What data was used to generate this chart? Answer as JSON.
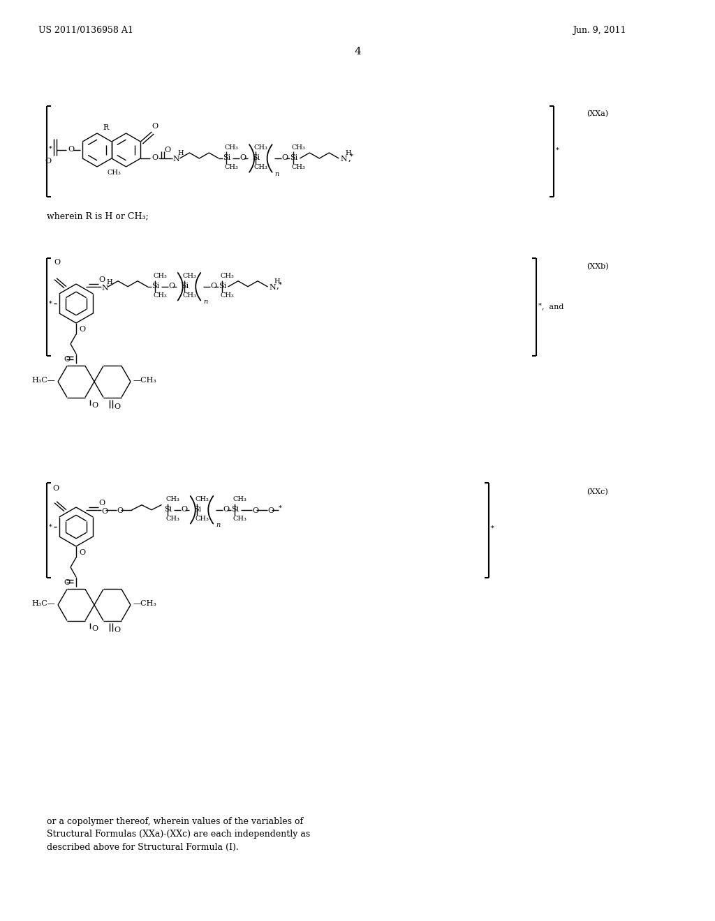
{
  "bg_color": "#ffffff",
  "header_left": "US 2011/0136958 A1",
  "header_right": "Jun. 9, 2011",
  "page_number": "4",
  "label_XXa": "(XXa)",
  "label_XXb": "(XXb)",
  "label_XXc": "(XXc)",
  "wherein_text": "wherein R is H or CH₃;",
  "footer_line1": "or a copolymer thereof, wherein values of the variables of",
  "footer_line2": "Structural Formulas (XXa)-(XXc) are each independently as",
  "footer_line3": "described above for Structural Formula (I)."
}
